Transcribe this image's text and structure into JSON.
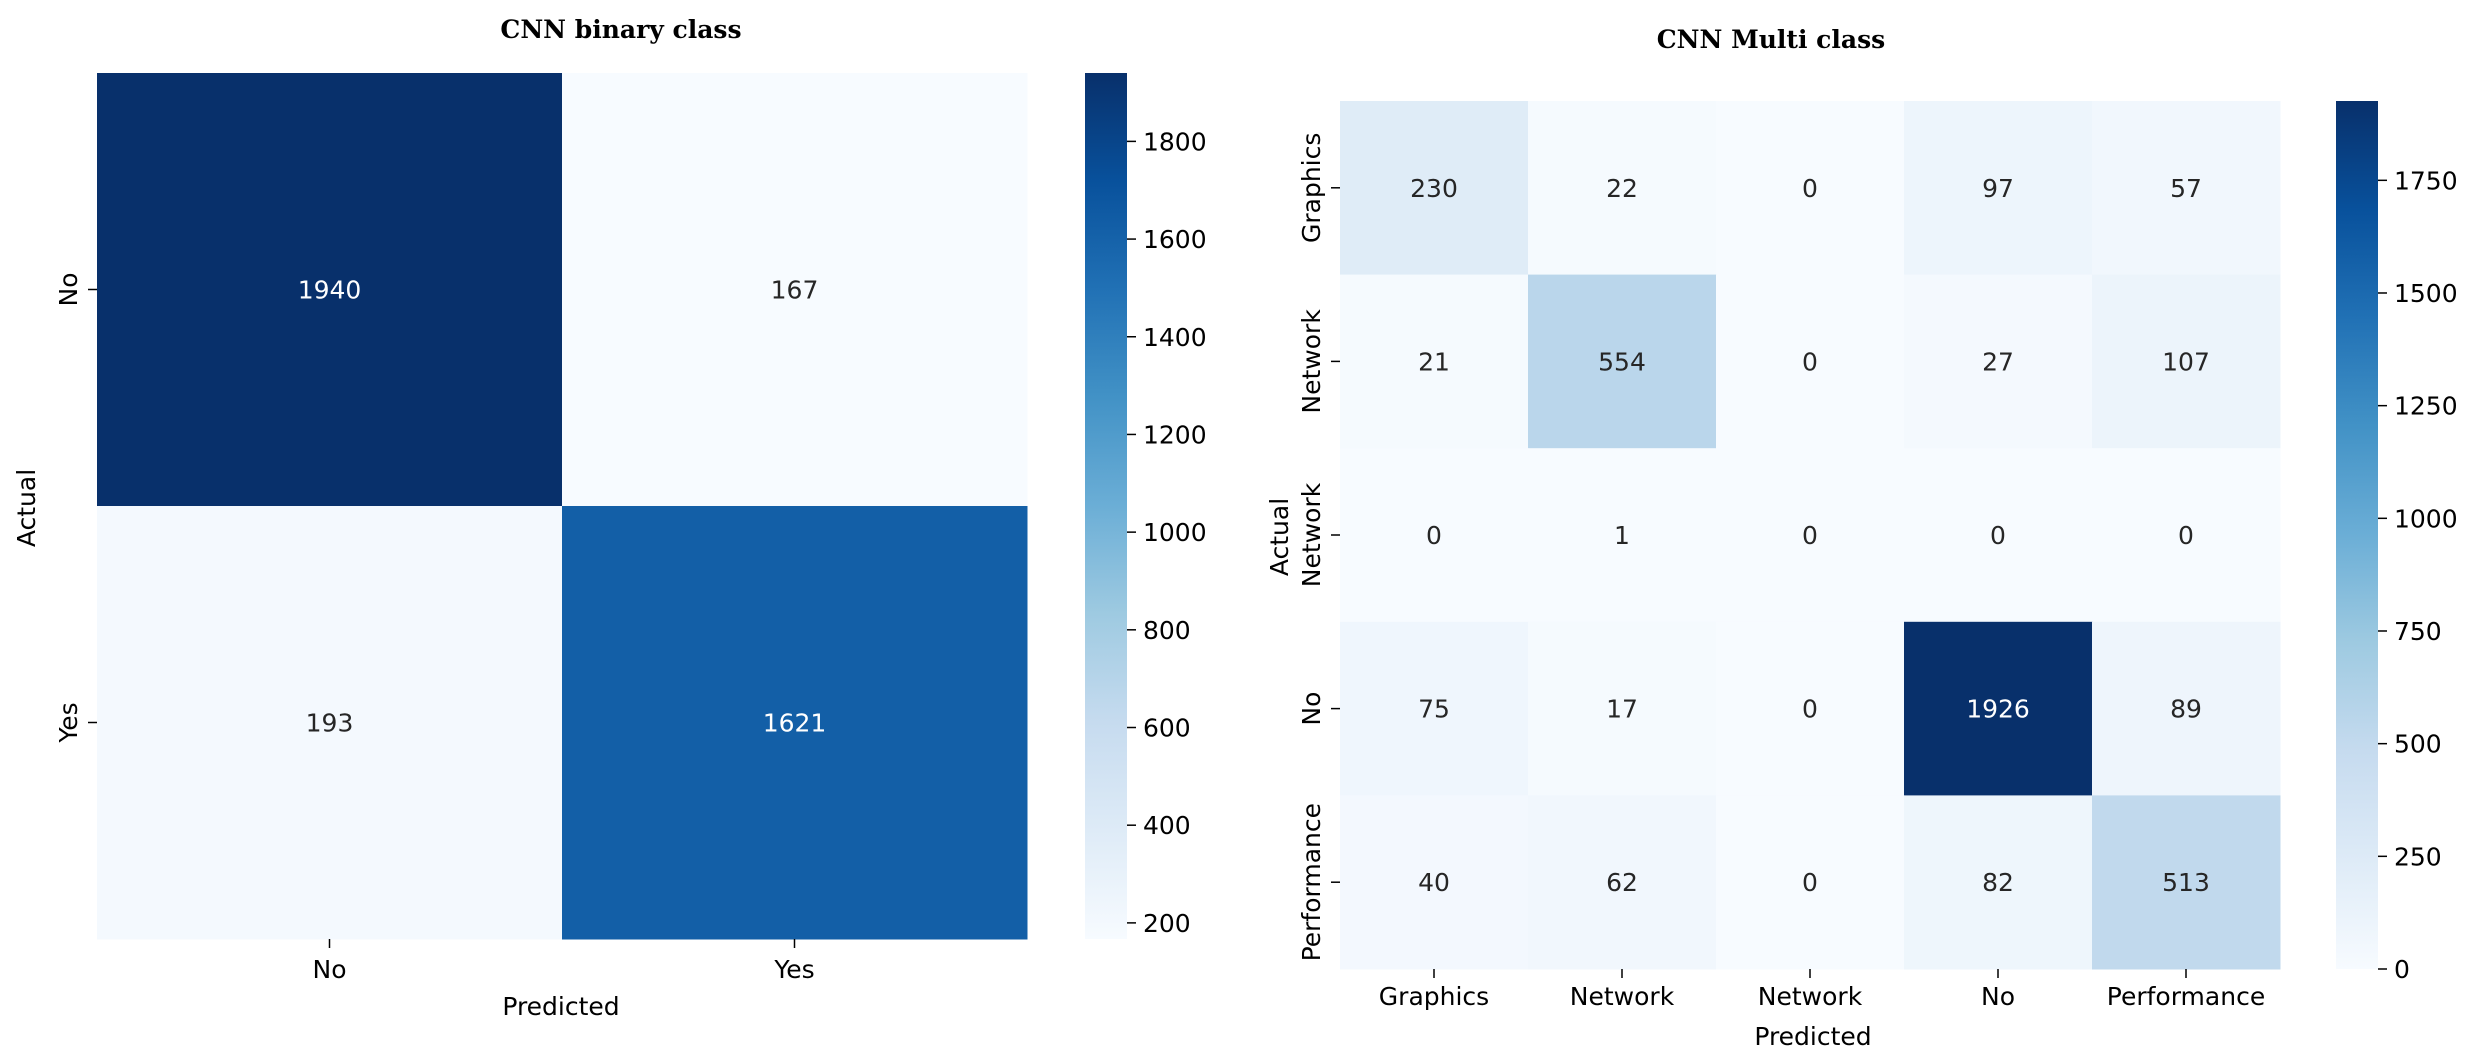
{
  "chart_data": [
    {
      "type": "heatmap",
      "title": "CNN binary class",
      "xlabel": "Predicted",
      "ylabel": "Actual",
      "x_categories": [
        "No",
        "Yes"
      ],
      "y_categories": [
        "No",
        "Yes"
      ],
      "values": [
        [
          1940,
          167
        ],
        [
          193,
          1621
        ]
      ],
      "colorbar": {
        "min": 167,
        "max": 1940,
        "ticks": [
          200,
          400,
          600,
          800,
          1000,
          1200,
          1400,
          1600,
          1800
        ]
      },
      "colormap": "Blues"
    },
    {
      "type": "heatmap",
      "title": "CNN Multi class",
      "xlabel": "Predicted",
      "ylabel": "Actual",
      "x_categories": [
        "Graphics",
        "Network",
        "Network",
        "No",
        "Performance"
      ],
      "y_categories": [
        "Graphics",
        "Network",
        "Network",
        "No",
        "Performance"
      ],
      "values": [
        [
          230,
          22,
          0,
          97,
          57
        ],
        [
          21,
          554,
          0,
          27,
          107
        ],
        [
          0,
          1,
          0,
          0,
          0
        ],
        [
          75,
          17,
          0,
          1926,
          89
        ],
        [
          40,
          62,
          0,
          82,
          513
        ]
      ],
      "colorbar": {
        "min": 0,
        "max": 1926,
        "ticks": [
          0,
          250,
          500,
          750,
          1000,
          1250,
          1500,
          1750
        ]
      },
      "colormap": "Blues"
    }
  ],
  "colors": {
    "blues_stops": [
      "#f7fbff",
      "#deebf7",
      "#c6dbef",
      "#9ecae1",
      "#6baed6",
      "#4292c6",
      "#2171b5",
      "#08519c",
      "#08306b"
    ],
    "light_text": "#ffffff",
    "dark_text": "#262626"
  }
}
